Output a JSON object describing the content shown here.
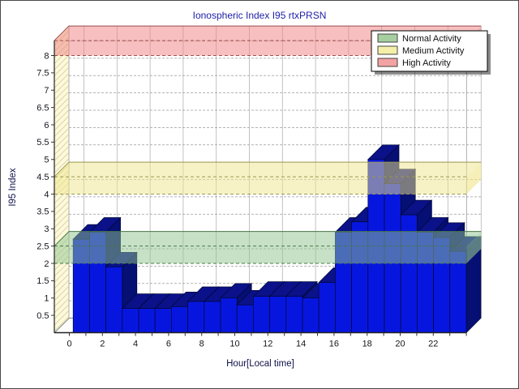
{
  "window": {
    "background": "#ffffff",
    "border_color": "#4a4a4a"
  },
  "chart_data": {
    "type": "bar",
    "title": "Ionospheric Index I95 rtxPRSN",
    "title_color": "#2121A8",
    "xlabel": "Hour[Local time]",
    "ylabel": "I95 Index",
    "axis_title_color": "#10104a",
    "tick_label_color": "#15151f",
    "categories": [
      0,
      1,
      2,
      3,
      4,
      5,
      6,
      7,
      8,
      9,
      10,
      11,
      12,
      13,
      14,
      15,
      16,
      17,
      18,
      19,
      20,
      21,
      22,
      23
    ],
    "values": [
      2.7,
      2.9,
      1.9,
      0.7,
      0.7,
      0.7,
      0.75,
      0.9,
      0.9,
      1.0,
      0.8,
      1.05,
      1.05,
      1.05,
      1.0,
      1.45,
      2.9,
      3.2,
      5.0,
      4.3,
      3.4,
      2.9,
      2.75,
      2.35
    ],
    "x_tick_labels": [
      "0",
      "2",
      "4",
      "6",
      "8",
      "10",
      "12",
      "14",
      "16",
      "18",
      "20",
      "22"
    ],
    "y_ticks": [
      "0.5",
      "1",
      "1.5",
      "2",
      "2.5",
      "3",
      "3.5",
      "4",
      "4.5",
      "5",
      "5.5",
      "6",
      "6.5",
      "7",
      "7.5",
      "8"
    ],
    "ylim": [
      0,
      8.43
    ],
    "grid": true,
    "legend_position": "top-right",
    "bands": [
      {
        "name": "Normal Activity",
        "from": 2.0,
        "to": 2.5,
        "fill": "#8FC48F",
        "legend_color": "#A6CEA0",
        "edge": "#4a7a4a"
      },
      {
        "name": "Medium Activity",
        "from": 4.0,
        "to": 4.5,
        "fill": "#F0E68C",
        "legend_color": "#F4EFA9",
        "edge": "#9a9a50"
      },
      {
        "name": "High Activity",
        "from": 8.0,
        "to": 8.43,
        "fill": "#F08080",
        "legend_color": "#F2A3A3",
        "edge": "#a05050"
      }
    ],
    "bar_colors": {
      "front": "#0716DF",
      "top": "#0A1189",
      "side": "#060F73",
      "outline": "#000833"
    },
    "wall_color": "#FDF9D9",
    "hatch_color": "#CFCBA8",
    "grid_color": "#9a9a9a"
  }
}
